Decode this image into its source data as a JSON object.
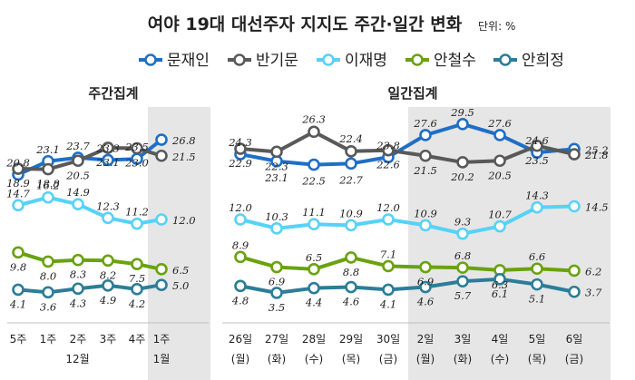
{
  "header": {
    "title": "여야 19대 대선주자 지지도 주간·일간 변화",
    "unit": "단위: %"
  },
  "colors": {
    "문재인": "#1f6fc5",
    "반기문": "#595959",
    "이재명": "#57d2f7",
    "안철수": "#6aa210",
    "안희정": "#2c7d97",
    "shade": "#e6e6e6",
    "axis": "#bfbfbf"
  },
  "chart_data": [
    {
      "type": "line",
      "title": "주간집계",
      "categories": [
        "5주",
        "1주",
        "2주",
        "3주",
        "4주",
        "1주"
      ],
      "category_groups": [
        {
          "label": "12월",
          "from": 0,
          "to": 4
        },
        {
          "label": "1월",
          "from": 5,
          "to": 5
        }
      ],
      "highlight_from": 5,
      "series": [
        {
          "name": "문재인",
          "values": [
            20.8,
            23.1,
            23.7,
            23.3,
            23.5,
            26.8
          ]
        },
        {
          "name": "반기문",
          "values": [
            18.9,
            18.8,
            20.5,
            23.1,
            23.0,
            21.5
          ]
        },
        {
          "name": "이재명",
          "values": [
            14.7,
            16.2,
            14.9,
            12.3,
            11.2,
            12.0
          ]
        },
        {
          "name": "안철수",
          "values": [
            9.8,
            8.0,
            8.3,
            8.2,
            7.5,
            6.5
          ]
        },
        {
          "name": "안희정",
          "values": [
            4.1,
            3.6,
            4.3,
            4.9,
            4.2,
            5.0
          ]
        }
      ],
      "grid": false,
      "legend": "top"
    },
    {
      "type": "line",
      "title": "일간집계",
      "categories": [
        "26일",
        "27일",
        "28일",
        "29일",
        "30일",
        "2일",
        "3일",
        "4일",
        "5일",
        "6일"
      ],
      "sub_labels": [
        "(월)",
        "(화)",
        "(수)",
        "(목)",
        "(금)",
        "(월)",
        "(화)",
        "(수)",
        "(목)",
        "(금)"
      ],
      "highlight_from": 5,
      "series": [
        {
          "name": "문재인",
          "values": [
            24.3,
            23.1,
            22.5,
            22.7,
            23.8,
            27.6,
            29.5,
            27.6,
            24.6,
            25.2
          ]
        },
        {
          "name": "반기문",
          "values": [
            22.9,
            22.3,
            26.3,
            22.4,
            22.6,
            21.5,
            20.2,
            20.5,
            23.5,
            21.8
          ]
        },
        {
          "name": "이재명",
          "values": [
            12.0,
            10.3,
            11.1,
            10.9,
            12.0,
            10.9,
            9.3,
            10.7,
            14.3,
            14.5
          ]
        },
        {
          "name": "안철수",
          "values": [
            8.9,
            6.9,
            6.5,
            8.8,
            7.1,
            6.9,
            6.8,
            6.3,
            6.6,
            6.2
          ]
        },
        {
          "name": "안희정",
          "values": [
            4.8,
            3.5,
            4.4,
            4.6,
            4.1,
            4.6,
            5.7,
            6.1,
            5.1,
            3.7
          ]
        }
      ],
      "grid": false,
      "legend": "top"
    }
  ]
}
